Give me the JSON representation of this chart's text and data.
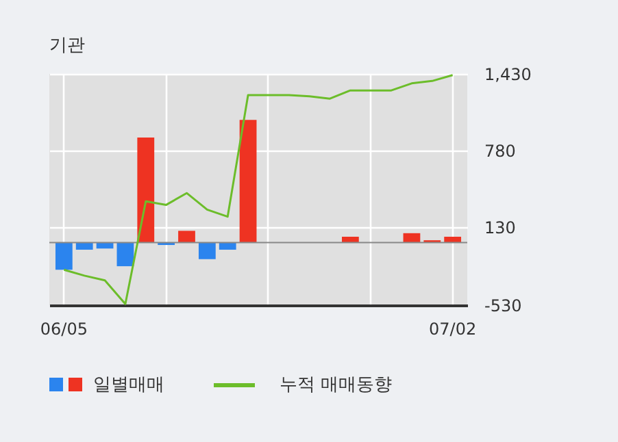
{
  "chart_data": {
    "type": "bar",
    "title": "기관",
    "categories": [
      "06/05",
      null,
      null,
      null,
      null,
      null,
      null,
      null,
      null,
      null,
      null,
      null,
      null,
      null,
      null,
      null,
      null,
      null,
      null,
      "07/02"
    ],
    "series": [
      {
        "name": "일별매매",
        "colors": [
          "#2b84ee",
          "#2b84ee",
          "#2b84ee",
          "#2b84ee",
          "#ee3322",
          "#2b84ee",
          "#ee3322",
          "#2b84ee",
          "#2b84ee",
          "#ee3322",
          "#ee3322",
          "#ee3322",
          "#ee3322",
          "#ee3322",
          "#ee3322",
          "#ee3322",
          "#ee3322",
          "#ee3322",
          "#ee3322",
          "#ee3322"
        ],
        "values": [
          -230,
          -60,
          -50,
          -200,
          890,
          -20,
          100,
          -140,
          -60,
          1040,
          0,
          0,
          0,
          0,
          50,
          0,
          0,
          80,
          20,
          50
        ]
      },
      {
        "name": "누적 매매동향",
        "type": "line",
        "color": "#6cbd2a",
        "values": [
          -230,
          -280,
          -320,
          -520,
          350,
          320,
          420,
          280,
          220,
          1250,
          1250,
          1250,
          1240,
          1220,
          1290,
          1290,
          1290,
          1350,
          1370,
          1420
        ]
      }
    ],
    "ylim": [
      -530,
      1430
    ],
    "yticks": [
      -530,
      130,
      780,
      {
        "value": 1430,
        "label": "1,430"
      }
    ],
    "grid": true,
    "legend": "bottom",
    "ref_lines": [
      {
        "axis": "y",
        "value": 0,
        "color": "#888888"
      }
    ]
  }
}
